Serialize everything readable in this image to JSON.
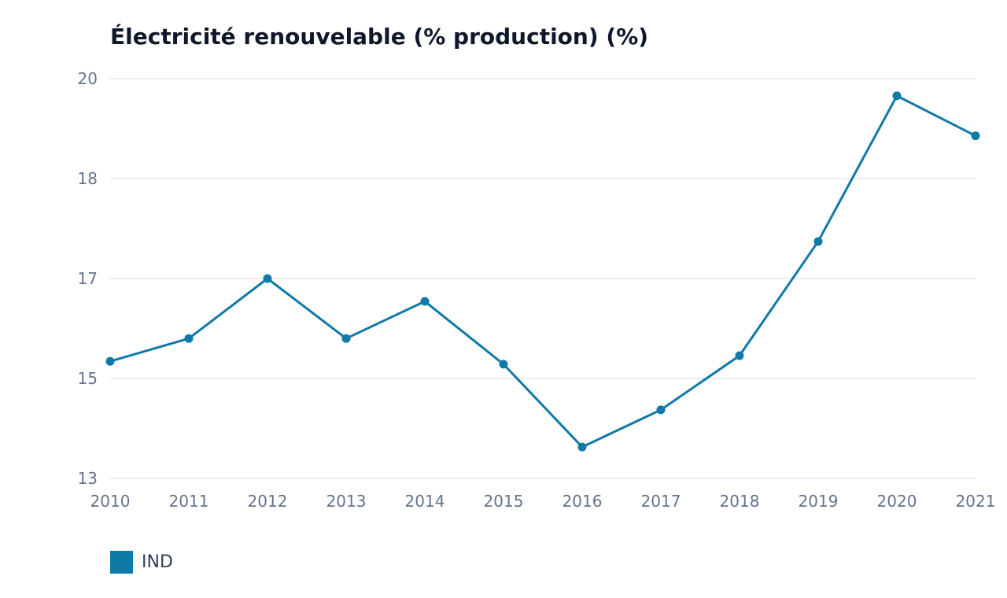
{
  "chart_data": {
    "type": "line",
    "title": "Électricité renouvelable (% production) (%)",
    "categories": [
      "2010",
      "2011",
      "2012",
      "2013",
      "2014",
      "2015",
      "2016",
      "2017",
      "2018",
      "2019",
      "2020",
      "2021"
    ],
    "series": [
      {
        "name": "IND",
        "color": "#0f79a8",
        "values": [
          15.05,
          15.45,
          16.5,
          15.45,
          16.1,
          15.0,
          13.55,
          14.2,
          15.15,
          17.15,
          19.7,
          19.0
        ]
      }
    ],
    "y_ticks": [
      "20",
      "18",
      "17",
      "15",
      "13"
    ],
    "ylim": [
      13,
      20
    ],
    "grid": true,
    "legend_position": "bottom-left"
  }
}
